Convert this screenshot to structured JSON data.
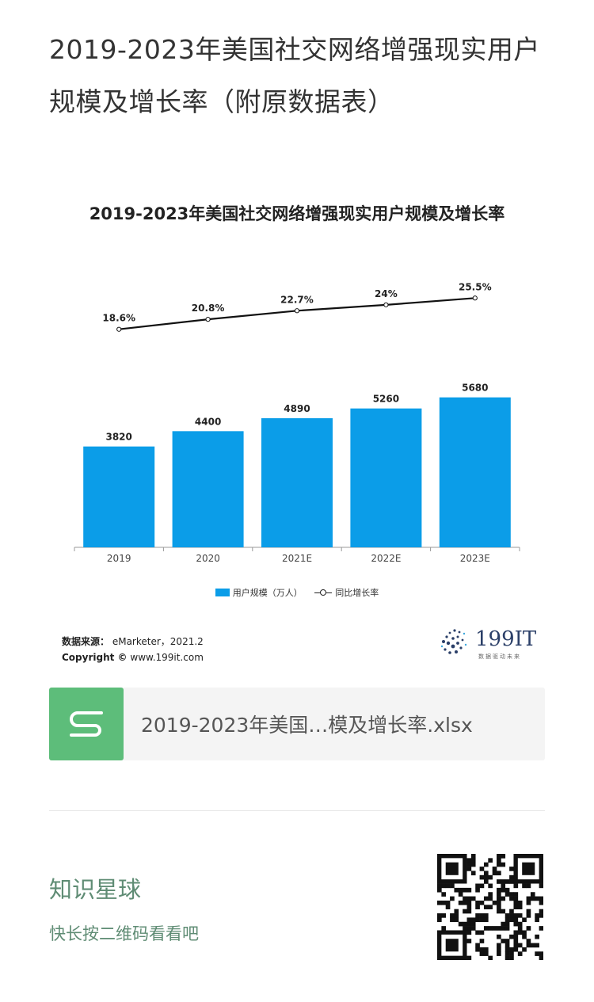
{
  "page": {
    "title": "2019-2023年美国社交网络增强现实用户规模及增长率（附原数据表）"
  },
  "chart_data": {
    "type": "bar",
    "title": "2019-2023年美国社交网络增强现实用户规模及增长率",
    "categories": [
      "2019",
      "2020",
      "2021E",
      "2022E",
      "2023E"
    ],
    "series": [
      {
        "name": "用户规模（万人）",
        "type": "bar",
        "values": [
          3820,
          4400,
          4890,
          5260,
          5680
        ],
        "value_labels": [
          "3820",
          "4400",
          "4890",
          "5260",
          "5680"
        ]
      },
      {
        "name": "同比增长率",
        "type": "line",
        "values": [
          18.6,
          20.8,
          22.7,
          24.0,
          25.5
        ],
        "value_labels": [
          "18.6%",
          "20.8%",
          "22.7%",
          "24%",
          "25.5%"
        ]
      }
    ],
    "legend_position": "bottom",
    "grid": false,
    "colors": {
      "bar": "#0b9de8",
      "line": "#111111"
    }
  },
  "source": {
    "label": "数据来源：",
    "value": "eMarketer，2021.2",
    "copyright_label": "Copyright ©",
    "copyright_value": "www.199it.com"
  },
  "logo": {
    "name": "199IT",
    "tagline": "数据驱动未来"
  },
  "file_card": {
    "icon": "spreadsheet-s-icon",
    "filename": "2019-2023年美国…模及增长率.xlsx"
  },
  "footer": {
    "title": "知识星球",
    "subtitle": "快长按二维码看看吧",
    "qr_icon": "qr-code-icon"
  }
}
